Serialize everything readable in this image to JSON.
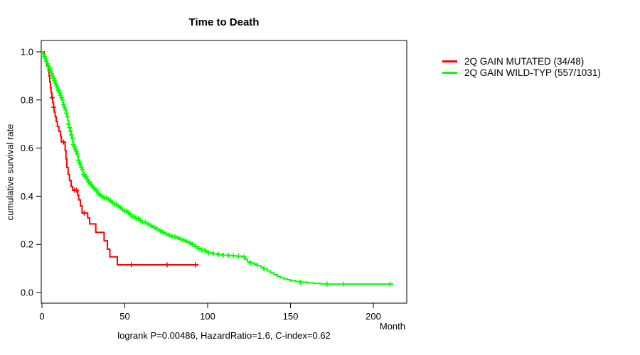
{
  "title": "Time to Death",
  "y_axis": {
    "label": "cumulative survival rate",
    "ticks": [
      "0.0",
      "0.2",
      "0.4",
      "0.6",
      "0.8",
      "1.0"
    ]
  },
  "x_axis": {
    "label": "Month",
    "ticks": [
      "0",
      "50",
      "100",
      "150",
      "200"
    ]
  },
  "caption": "logrank P=0.00486, HazardRatio=1.6, C-index=0.62",
  "legend": [
    {
      "label": "2Q GAIN MUTATED (34/48)",
      "color": "#ff0000"
    },
    {
      "label": "2Q GAIN WILD-TYP (557/1031)",
      "color": "#00ff00"
    }
  ],
  "chart_data": {
    "type": "line",
    "subtype": "kaplan-meier-step",
    "title": "Time to Death",
    "xlabel": "Month",
    "ylabel": "cumulative survival rate",
    "xlim": [
      0,
      220
    ],
    "ylim": [
      0.0,
      1.0
    ],
    "x_ticks": [
      0,
      50,
      100,
      150,
      200
    ],
    "y_ticks": [
      0.0,
      0.2,
      0.4,
      0.6,
      0.8,
      1.0
    ],
    "grid": false,
    "legend_position": "right-outside",
    "annotation": "logrank P=0.00486, HazardRatio=1.6, C-index=0.62",
    "series": [
      {
        "id": "mutated",
        "name": "2Q GAIN MUTATED (34/48)",
        "color": "#ff0000",
        "events": 34,
        "n": 48,
        "end_month": 94.5,
        "steps": [
          [
            0,
            1.0
          ],
          [
            1.3,
            0.98
          ],
          [
            2.2,
            0.96
          ],
          [
            3.0,
            0.94
          ],
          [
            3.8,
            0.92
          ],
          [
            4.3,
            0.9
          ],
          [
            4.7,
            0.875
          ],
          [
            5.1,
            0.85
          ],
          [
            5.5,
            0.83
          ],
          [
            6.0,
            0.81
          ],
          [
            6.5,
            0.79
          ],
          [
            7.0,
            0.77
          ],
          [
            7.4,
            0.75
          ],
          [
            8.0,
            0.73
          ],
          [
            8.6,
            0.71
          ],
          [
            9.3,
            0.69
          ],
          [
            10.2,
            0.67
          ],
          [
            11.2,
            0.65
          ],
          [
            11.7,
            0.625
          ],
          [
            14.0,
            0.59
          ],
          [
            14.5,
            0.555
          ],
          [
            15.0,
            0.52
          ],
          [
            15.8,
            0.49
          ],
          [
            16.6,
            0.465
          ],
          [
            17.6,
            0.44
          ],
          [
            18.6,
            0.425
          ],
          [
            21.6,
            0.405
          ],
          [
            22.2,
            0.385
          ],
          [
            23.2,
            0.36
          ],
          [
            24.2,
            0.33
          ],
          [
            27.6,
            0.31
          ],
          [
            28.8,
            0.285
          ],
          [
            32.5,
            0.25
          ],
          [
            37.5,
            0.215
          ],
          [
            39.5,
            0.18
          ],
          [
            41.0,
            0.148
          ],
          [
            45.5,
            0.115
          ]
        ],
        "censor_months": [
          6.1,
          7.1,
          13.0,
          19.6,
          20.9,
          25.5,
          54,
          75.5,
          92.7
        ]
      },
      {
        "id": "wild-typ",
        "name": "2Q GAIN WILD-TYP (557/1031)",
        "color": "#00ff00",
        "events": 557,
        "n": 1031,
        "end_month": 212,
        "steps": [
          [
            0,
            1.0
          ],
          [
            0.6,
            0.99
          ],
          [
            1.2,
            0.98
          ],
          [
            1.8,
            0.97
          ],
          [
            2.4,
            0.96
          ],
          [
            3.0,
            0.95
          ],
          [
            3.6,
            0.94
          ],
          [
            4.2,
            0.93
          ],
          [
            4.8,
            0.92
          ],
          [
            5.4,
            0.91
          ],
          [
            6.0,
            0.9
          ],
          [
            6.6,
            0.89
          ],
          [
            7.2,
            0.88
          ],
          [
            7.8,
            0.87
          ],
          [
            8.4,
            0.86
          ],
          [
            9.0,
            0.85
          ],
          [
            9.6,
            0.84
          ],
          [
            10.2,
            0.83
          ],
          [
            10.8,
            0.82
          ],
          [
            11.4,
            0.81
          ],
          [
            12.0,
            0.8
          ],
          [
            12.5,
            0.79
          ],
          [
            13.0,
            0.78
          ],
          [
            13.5,
            0.77
          ],
          [
            14.0,
            0.76
          ],
          [
            14.5,
            0.745
          ],
          [
            15.0,
            0.73
          ],
          [
            15.5,
            0.715
          ],
          [
            16.0,
            0.7
          ],
          [
            16.5,
            0.685
          ],
          [
            17.0,
            0.67
          ],
          [
            17.5,
            0.655
          ],
          [
            18.0,
            0.64
          ],
          [
            18.5,
            0.625
          ],
          [
            19.0,
            0.615
          ],
          [
            19.5,
            0.605
          ],
          [
            20.0,
            0.595
          ],
          [
            20.5,
            0.585
          ],
          [
            21.0,
            0.575
          ],
          [
            21.5,
            0.565
          ],
          [
            22.0,
            0.55
          ],
          [
            22.5,
            0.54
          ],
          [
            23.0,
            0.53
          ],
          [
            23.5,
            0.52
          ],
          [
            24.0,
            0.51
          ],
          [
            24.5,
            0.5
          ],
          [
            25.0,
            0.49
          ],
          [
            26.0,
            0.48
          ],
          [
            27.0,
            0.47
          ],
          [
            28.0,
            0.46
          ],
          [
            29.0,
            0.45
          ],
          [
            30.0,
            0.44
          ],
          [
            31.0,
            0.432
          ],
          [
            32.0,
            0.424
          ],
          [
            33.0,
            0.417
          ],
          [
            34.0,
            0.41
          ],
          [
            35.0,
            0.404
          ],
          [
            36.0,
            0.399
          ],
          [
            37.5,
            0.393
          ],
          [
            39.0,
            0.388
          ],
          [
            40.5,
            0.381
          ],
          [
            42.0,
            0.374
          ],
          [
            43.5,
            0.367
          ],
          [
            45.0,
            0.36
          ],
          [
            46.5,
            0.353
          ],
          [
            48.0,
            0.346
          ],
          [
            49.5,
            0.339
          ],
          [
            51.0,
            0.332
          ],
          [
            52.5,
            0.324
          ],
          [
            54.5,
            0.316
          ],
          [
            56.5,
            0.308
          ],
          [
            58.5,
            0.3
          ],
          [
            60.5,
            0.292
          ],
          [
            62.5,
            0.285
          ],
          [
            64.5,
            0.278
          ],
          [
            66.5,
            0.271
          ],
          [
            68.5,
            0.264
          ],
          [
            70.5,
            0.257
          ],
          [
            72.5,
            0.25
          ],
          [
            74.5,
            0.244
          ],
          [
            76.5,
            0.238
          ],
          [
            78.5,
            0.232
          ],
          [
            80.5,
            0.227
          ],
          [
            82.5,
            0.222
          ],
          [
            84.5,
            0.217
          ],
          [
            86.5,
            0.212
          ],
          [
            88.5,
            0.206
          ],
          [
            90.5,
            0.199
          ],
          [
            92.5,
            0.191
          ],
          [
            94.5,
            0.183
          ],
          [
            96.5,
            0.176
          ],
          [
            98.5,
            0.17
          ],
          [
            100.5,
            0.165
          ],
          [
            103,
            0.161
          ],
          [
            106,
            0.158
          ],
          [
            109,
            0.155
          ],
          [
            113,
            0.153
          ],
          [
            117,
            0.151
          ],
          [
            121,
            0.148
          ],
          [
            122.5,
            0.138
          ],
          [
            124,
            0.128
          ],
          [
            126,
            0.123
          ],
          [
            128,
            0.118
          ],
          [
            130,
            0.112
          ],
          [
            132,
            0.105
          ],
          [
            134,
            0.098
          ],
          [
            136,
            0.09
          ],
          [
            138,
            0.082
          ],
          [
            140,
            0.074
          ],
          [
            142,
            0.067
          ],
          [
            144,
            0.061
          ],
          [
            146,
            0.057
          ],
          [
            148,
            0.053
          ],
          [
            150,
            0.049
          ],
          [
            153,
            0.046
          ],
          [
            156,
            0.043
          ],
          [
            160,
            0.04
          ],
          [
            164,
            0.038
          ],
          [
            168,
            0.036
          ],
          [
            172,
            0.035
          ]
        ],
        "censor_months": [
          1.0,
          1.6,
          2.2,
          2.8,
          3.4,
          4.0,
          4.6,
          5.2,
          5.8,
          6.4,
          7.0,
          7.6,
          8.2,
          8.8,
          9.4,
          10.0,
          10.6,
          11.2,
          11.8,
          12.4,
          13.0,
          13.6,
          14.2,
          14.8,
          15.4,
          16.0,
          16.6,
          17.2,
          17.8,
          18.4,
          19.0,
          19.6,
          20.2,
          20.8,
          21.4,
          22.0,
          22.6,
          23.2,
          23.8,
          24.4,
          25.0,
          25.6,
          26.2,
          26.8,
          27.4,
          28.0,
          28.6,
          29.2,
          29.8,
          30.5,
          31.7,
          32.9,
          34.1,
          35.3,
          36.5,
          37.7,
          38.9,
          40.1,
          41.3,
          42.5,
          43.7,
          44.9,
          46.1,
          47.3,
          48.5,
          49.7,
          50.9,
          52.1,
          53.3,
          54.5,
          55.7,
          56.9,
          58.1,
          59.3,
          60.5,
          62.3,
          64.1,
          65.9,
          67.7,
          69.5,
          71.3,
          73.1,
          74.9,
          76.7,
          78.5,
          80.3,
          82.1,
          83.9,
          85.7,
          87.5,
          89.3,
          91.1,
          92.9,
          94.7,
          96.5,
          98.3,
          100.5,
          103.5,
          106.5,
          109.5,
          112.5,
          115.5,
          118.5,
          122,
          126,
          130,
          134,
          156,
          172,
          182,
          210
        ]
      }
    ]
  }
}
